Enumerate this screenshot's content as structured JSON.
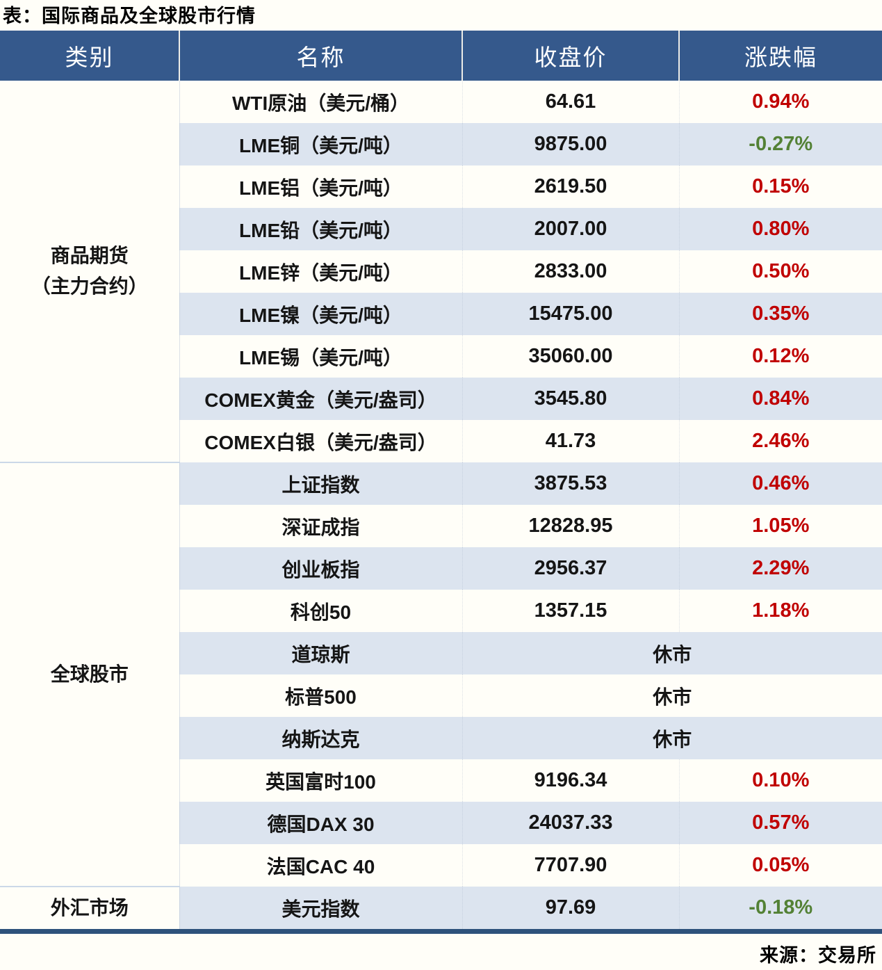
{
  "title": "表：国际商品及全球股市行情",
  "source": "来源：交易所",
  "colors": {
    "header_bg": "#35598C",
    "row_stripe": "#DCE4EF",
    "page_bg": "#FFFEF8",
    "up_red": "#C00000",
    "down_green": "#538135",
    "bottom_border": "#2E527C"
  },
  "table": {
    "headers": [
      "类别",
      "名称",
      "收盘价",
      "涨跌幅"
    ],
    "closed_label": "休市",
    "sections": [
      {
        "category_lines": [
          "商品期货",
          "（主力合约）"
        ],
        "rows": [
          {
            "name": "WTI原油（美元/桶）",
            "close": "64.61",
            "change": "0.94%",
            "direction": "up"
          },
          {
            "name": "LME铜（美元/吨）",
            "close": "9875.00",
            "change": "-0.27%",
            "direction": "down"
          },
          {
            "name": "LME铝（美元/吨）",
            "close": "2619.50",
            "change": "0.15%",
            "direction": "up"
          },
          {
            "name": "LME铅（美元/吨）",
            "close": "2007.00",
            "change": "0.80%",
            "direction": "up"
          },
          {
            "name": "LME锌（美元/吨）",
            "close": "2833.00",
            "change": "0.50%",
            "direction": "up"
          },
          {
            "name": "LME镍（美元/吨）",
            "close": "15475.00",
            "change": "0.35%",
            "direction": "up"
          },
          {
            "name": "LME锡（美元/吨）",
            "close": "35060.00",
            "change": "0.12%",
            "direction": "up"
          },
          {
            "name": "COMEX黄金（美元/盎司）",
            "close": "3545.80",
            "change": "0.84%",
            "direction": "up"
          },
          {
            "name": "COMEX白银（美元/盎司）",
            "close": "41.73",
            "change": "2.46%",
            "direction": "up"
          }
        ]
      },
      {
        "category_lines": [
          "全球股市"
        ],
        "rows": [
          {
            "name": "上证指数",
            "close": "3875.53",
            "change": "0.46%",
            "direction": "up"
          },
          {
            "name": "深证成指",
            "close": "12828.95",
            "change": "1.05%",
            "direction": "up"
          },
          {
            "name": "创业板指",
            "close": "2956.37",
            "change": "2.29%",
            "direction": "up"
          },
          {
            "name": "科创50",
            "close": "1357.15",
            "change": "1.18%",
            "direction": "up"
          },
          {
            "name": "道琼斯",
            "closed": true
          },
          {
            "name": "标普500",
            "closed": true
          },
          {
            "name": "纳斯达克",
            "closed": true
          },
          {
            "name": "英国富时100",
            "close": "9196.34",
            "change": "0.10%",
            "direction": "up"
          },
          {
            "name": "德国DAX 30",
            "close": "24037.33",
            "change": "0.57%",
            "direction": "up"
          },
          {
            "name": "法国CAC 40",
            "close": "7707.90",
            "change": "0.05%",
            "direction": "up"
          }
        ]
      },
      {
        "category_lines": [
          "外汇市场"
        ],
        "rows": [
          {
            "name": "美元指数",
            "close": "97.69",
            "change": "-0.18%",
            "direction": "down"
          }
        ]
      }
    ]
  }
}
